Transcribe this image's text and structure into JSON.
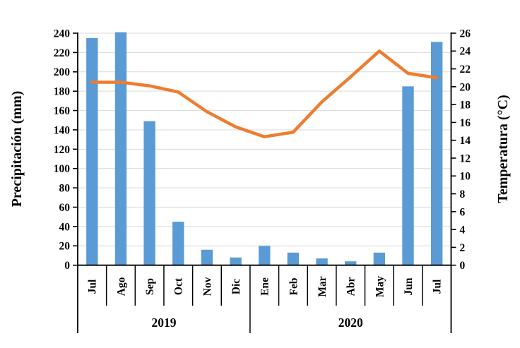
{
  "chart_data": {
    "type": "bar+line",
    "title": "",
    "categories": [
      "Jul",
      "Ago",
      "Sep",
      "Oct",
      "Nov",
      "Dic",
      "Ene",
      "Feb",
      "Mar",
      "Abr",
      "May",
      "Jun",
      "Jul"
    ],
    "year_groups": [
      {
        "label": "2019",
        "span": 6
      },
      {
        "label": "2020",
        "span": 7
      }
    ],
    "series": [
      {
        "name": "Precipitación",
        "type": "bar",
        "axis": "left",
        "color": "#5B9BD5",
        "values": [
          235,
          241,
          149,
          45,
          16,
          8,
          20,
          13,
          7,
          4,
          13,
          185,
          231
        ]
      },
      {
        "name": "Temperatura",
        "type": "line",
        "axis": "right",
        "color": "#ED7D31",
        "values": [
          20.5,
          20.5,
          20.1,
          19.4,
          17.2,
          15.5,
          14.4,
          14.9,
          18.3,
          21.1,
          24.0,
          21.5,
          21.0
        ]
      }
    ],
    "left_axis": {
      "label": "Precipitación (mm)",
      "min": 0,
      "max": 240,
      "step": 20,
      "tick_labels": [
        "0",
        "20",
        "40",
        "60",
        "80",
        "100",
        "120",
        "140",
        "160",
        "180",
        "200",
        "220",
        "240"
      ]
    },
    "right_axis": {
      "label": "Temperatura (°C)",
      "min": 0,
      "max": 26,
      "step": 2,
      "tick_labels": [
        "0",
        "2",
        "4",
        "6",
        "8",
        "10",
        "12",
        "14",
        "16",
        "18",
        "20",
        "22",
        "24",
        "26"
      ]
    },
    "grid": true,
    "legend": "none",
    "colors": {
      "bar": "#5B9BD5",
      "line": "#ED7D31",
      "grid": "#D9D9D9",
      "axis": "#000000",
      "text": "#000000",
      "background": "#FFFFFF"
    }
  }
}
